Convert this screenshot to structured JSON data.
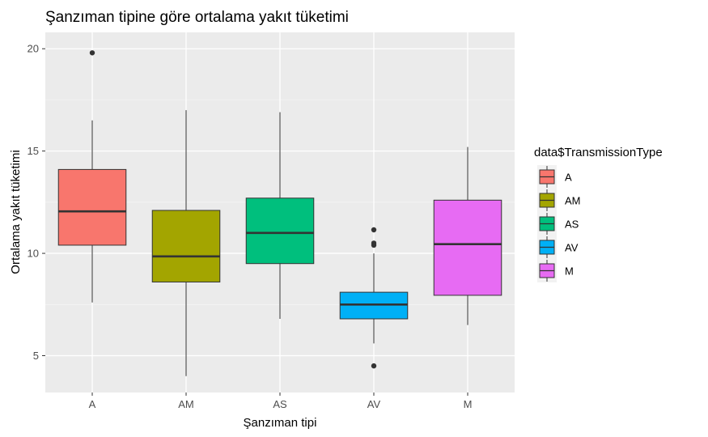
{
  "chart_data": {
    "type": "boxplot",
    "title": "Şanzıman tipine göre ortalama yakıt tüketimi",
    "xlabel": "Şanzıman tipi",
    "ylabel": "Ortalama yakıt tüketimi",
    "ylim": [
      3.2,
      20.8
    ],
    "yticks": [
      5,
      10,
      15,
      20
    ],
    "grid": true,
    "legend": {
      "title": "data$TransmissionType",
      "position": "right"
    },
    "categories": [
      "A",
      "AM",
      "AS",
      "AV",
      "M"
    ],
    "series": [
      {
        "name": "A",
        "color": "#F8766D",
        "whisker_low": 7.6,
        "q1": 10.4,
        "median": 12.05,
        "q3": 14.1,
        "whisker_high": 16.5,
        "outliers": [
          19.8
        ]
      },
      {
        "name": "AM",
        "color": "#A3A500",
        "whisker_low": 4.0,
        "q1": 8.6,
        "median": 9.85,
        "q3": 12.1,
        "whisker_high": 17.0,
        "outliers": []
      },
      {
        "name": "AS",
        "color": "#00BF7D",
        "whisker_low": 6.8,
        "q1": 9.5,
        "median": 11.0,
        "q3": 12.7,
        "whisker_high": 16.9,
        "outliers": []
      },
      {
        "name": "AV",
        "color": "#00B0F6",
        "whisker_low": 5.6,
        "q1": 6.8,
        "median": 7.5,
        "q3": 8.1,
        "whisker_high": 10.0,
        "outliers": [
          11.15,
          10.5,
          10.4,
          4.5
        ]
      },
      {
        "name": "M",
        "color": "#E76BF3",
        "whisker_low": 6.5,
        "q1": 7.95,
        "median": 10.45,
        "q3": 12.6,
        "whisker_high": 15.2,
        "outliers": []
      }
    ]
  }
}
